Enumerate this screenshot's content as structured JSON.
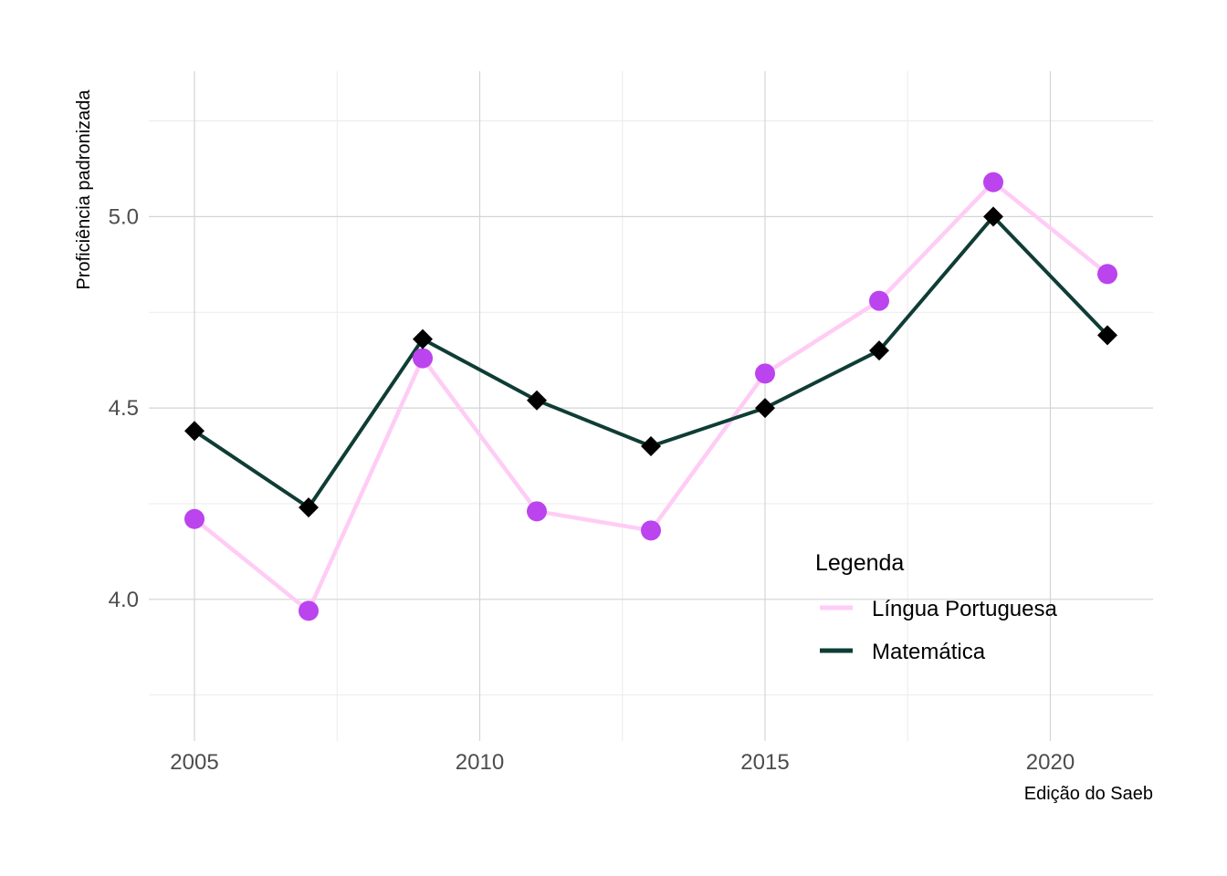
{
  "chart_data": {
    "type": "line",
    "xlabel": "Edição do Saeb",
    "ylabel": "Proficiência padronizada",
    "x": [
      2005,
      2007,
      2009,
      2011,
      2013,
      2015,
      2017,
      2019,
      2021
    ],
    "xlim": [
      2004.2,
      2021.8
    ],
    "ylim": [
      3.63,
      5.38
    ],
    "xticks": [
      2005,
      2010,
      2015,
      2020
    ],
    "xtick_labels": [
      "2005",
      "2010",
      "2015",
      "2020"
    ],
    "xgrid_minor": [
      2007.5,
      2012.5,
      2017.5
    ],
    "yticks": [
      4.0,
      4.5,
      5.0
    ],
    "ytick_labels": [
      "4.0",
      "4.5",
      "5.0"
    ],
    "ygrid_minor": [
      3.75,
      4.25,
      4.75,
      5.25
    ],
    "grid": true,
    "legend": {
      "title": "Legenda",
      "position": "bottom-right-inside"
    },
    "series": [
      {
        "name": "Língua Portuguesa",
        "values": [
          4.21,
          3.97,
          4.63,
          4.23,
          4.18,
          4.59,
          4.78,
          5.09,
          4.85
        ],
        "line_color": "#ffccf5",
        "marker": "circle",
        "marker_color": "#bb44ee"
      },
      {
        "name": "Matemática",
        "values": [
          4.44,
          4.24,
          4.68,
          4.52,
          4.4,
          4.5,
          4.65,
          5.0,
          4.69
        ],
        "line_color": "#0f3d35",
        "marker": "diamond",
        "marker_color": "#000000"
      }
    ]
  }
}
